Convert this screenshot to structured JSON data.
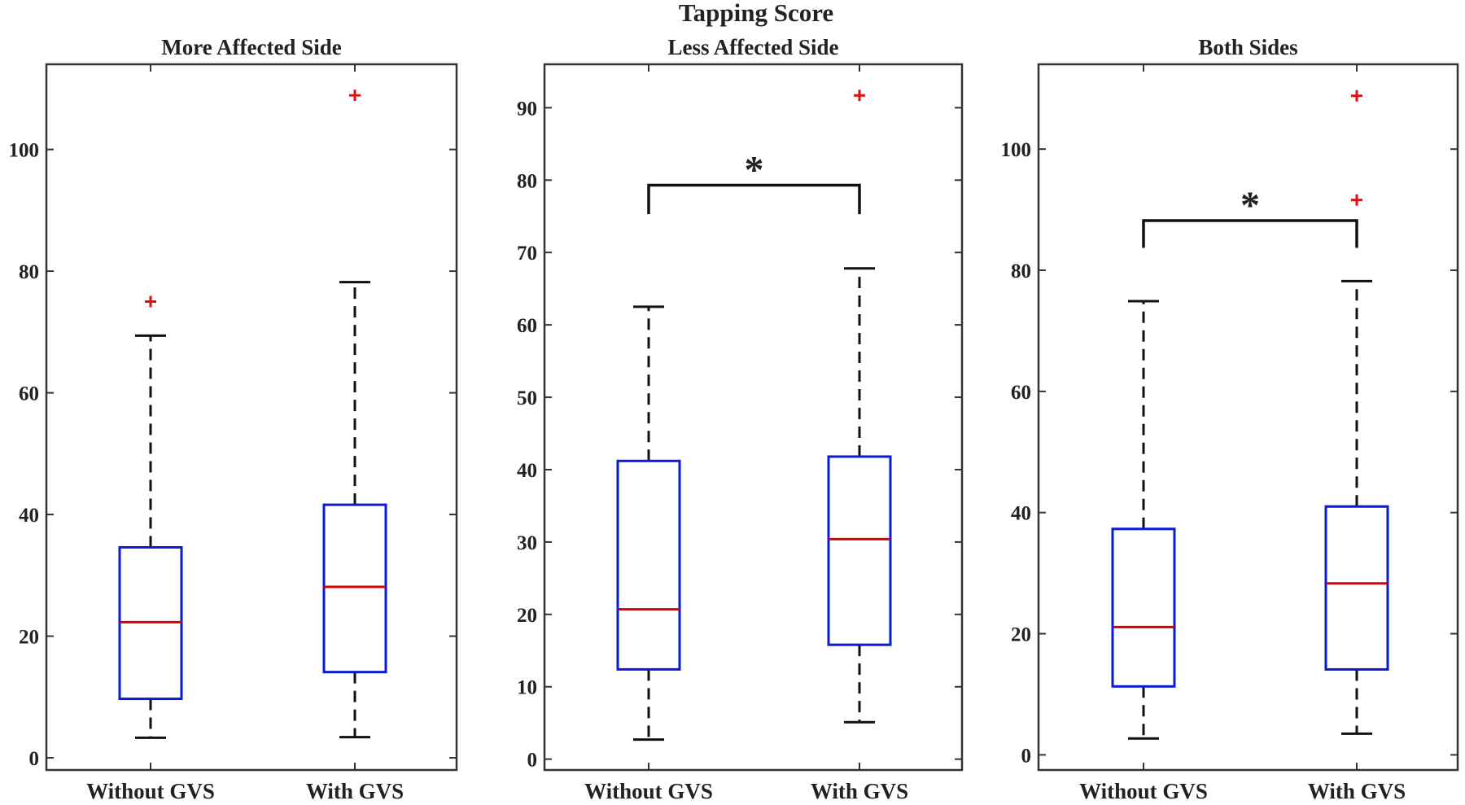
{
  "figure_title": "Tapping Score",
  "chart_data": [
    {
      "type": "box",
      "title": "More Affected Side",
      "categories": [
        "Without GVS",
        "With GVS"
      ],
      "ylim": [
        -2,
        114
      ],
      "yticks": [
        0,
        20,
        40,
        60,
        80,
        100
      ],
      "boxes": [
        {
          "name": "Without GVS",
          "whisker_low": 3.3,
          "q1": 9.7,
          "median": 22.3,
          "q3": 34.6,
          "whisker_high": 69.4,
          "outliers": [
            75
          ]
        },
        {
          "name": "With GVS",
          "whisker_low": 3.4,
          "q1": 14.1,
          "median": 28.1,
          "q3": 41.6,
          "whisker_high": 78.2,
          "outliers": [
            108.9
          ]
        }
      ],
      "significance": []
    },
    {
      "type": "box",
      "title": "Less Affected Side",
      "categories": [
        "Without GVS",
        "With GVS"
      ],
      "ylim": [
        -1.5,
        96
      ],
      "yticks": [
        0,
        10,
        20,
        30,
        40,
        50,
        60,
        70,
        80,
        90
      ],
      "boxes": [
        {
          "name": "Without GVS",
          "whisker_low": 2.7,
          "q1": 12.4,
          "median": 20.7,
          "q3": 41.2,
          "whisker_high": 62.5,
          "outliers": []
        },
        {
          "name": "With GVS",
          "whisker_low": 5.1,
          "q1": 15.8,
          "median": 30.4,
          "q3": 41.8,
          "whisker_high": 67.8,
          "outliers": [
            91.7
          ]
        }
      ],
      "significance": [
        {
          "from": 0,
          "to": 1,
          "y": 79.3,
          "drop": 4,
          "label": "*"
        }
      ]
    },
    {
      "type": "box",
      "title": "Both Sides",
      "categories": [
        "Without GVS",
        "With GVS"
      ],
      "ylim": [
        -2.5,
        114
      ],
      "yticks": [
        0,
        20,
        40,
        60,
        80,
        100
      ],
      "boxes": [
        {
          "name": "Without GVS",
          "whisker_low": 2.7,
          "q1": 11.3,
          "median": 21.1,
          "q3": 37.3,
          "whisker_high": 74.9,
          "outliers": []
        },
        {
          "name": "With GVS",
          "whisker_low": 3.5,
          "q1": 14.1,
          "median": 28.3,
          "q3": 41.0,
          "whisker_high": 78.2,
          "outliers": [
            91.6,
            108.8
          ]
        }
      ],
      "significance": [
        {
          "from": 0,
          "to": 1,
          "y": 88.2,
          "drop": 4.5,
          "label": "*"
        }
      ]
    }
  ],
  "colors": {
    "box": "#0a1ad6",
    "median": "#d90000",
    "outlier": "#e01010",
    "whisker": "#111111",
    "axis": "#333333"
  }
}
